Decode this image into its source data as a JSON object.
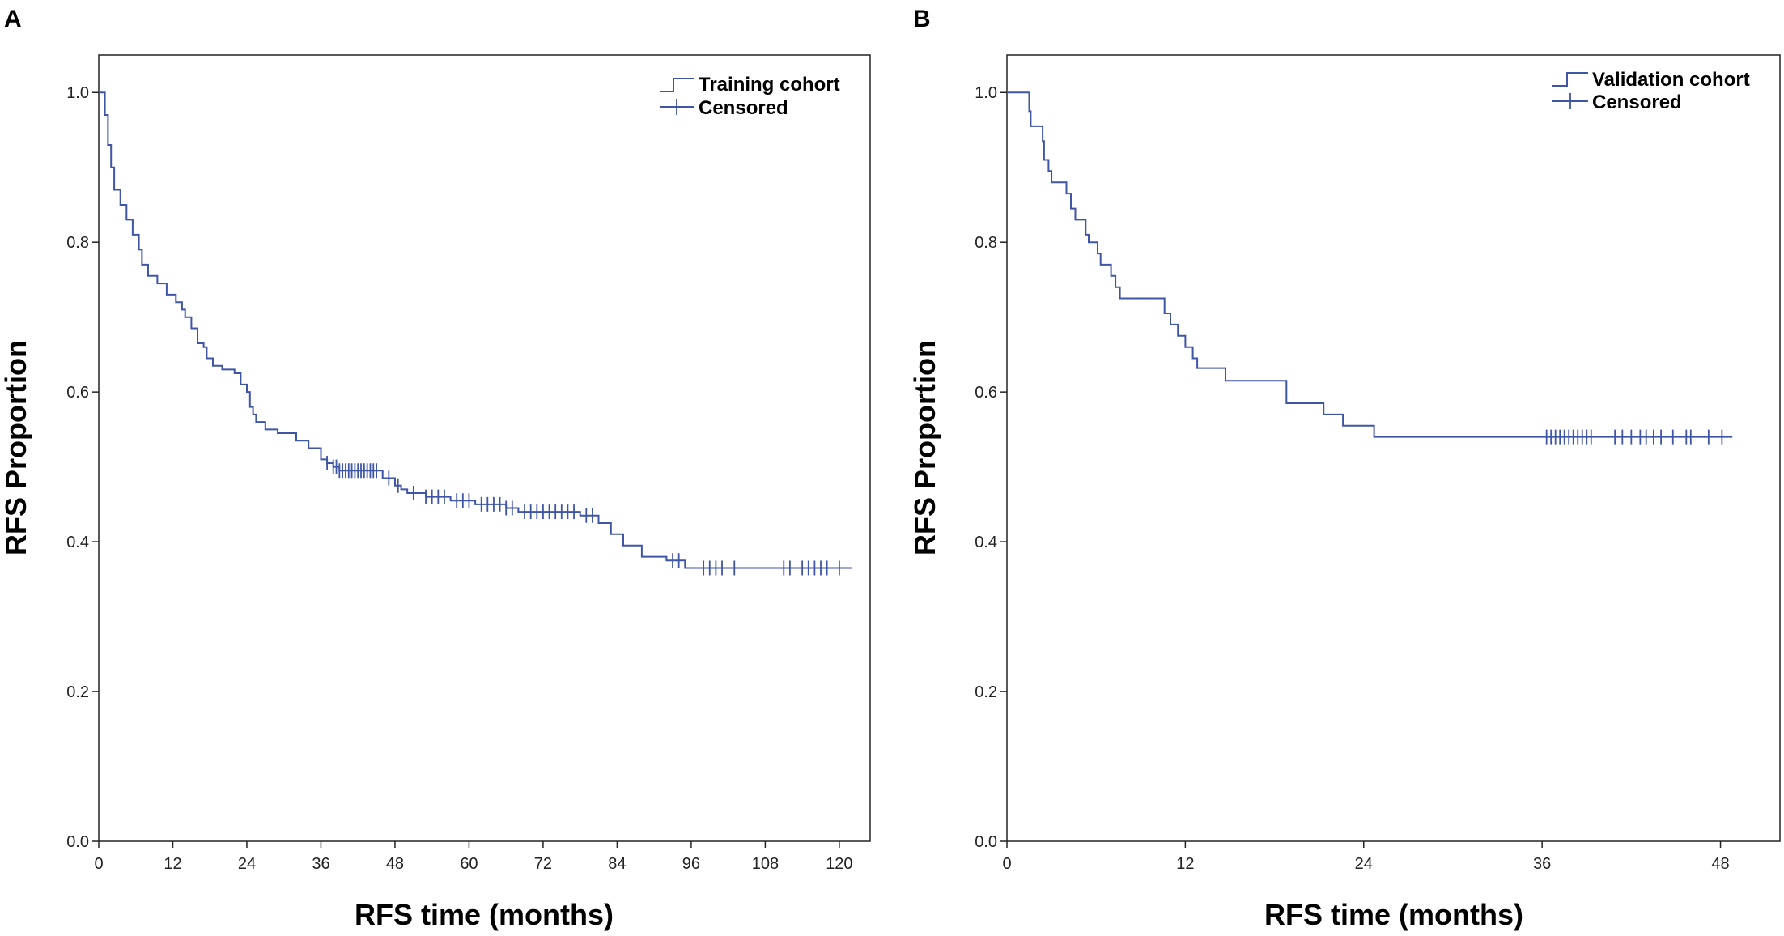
{
  "chart_data": [
    {
      "type": "line",
      "panel": "A",
      "title": "",
      "xlabel": "RFS time (months)",
      "ylabel": "RFS Proportion",
      "xlim": [
        0,
        125
      ],
      "ylim": [
        0,
        1.05
      ],
      "xticks": [
        0,
        12,
        24,
        36,
        48,
        60,
        72,
        84,
        96,
        108,
        120
      ],
      "yticks": [
        0.0,
        0.2,
        0.4,
        0.6,
        0.8,
        1.0
      ],
      "ytick_labels": [
        "0.0",
        "0.2",
        "0.4",
        "0.6",
        "0.8",
        "1.0"
      ],
      "legend": {
        "position": "top-right",
        "entries": [
          "Training cohort",
          "Censored"
        ]
      },
      "grid": false,
      "series": [
        {
          "name": "Training cohort",
          "step": [
            [
              0,
              1.0
            ],
            [
              1,
              0.97
            ],
            [
              1.5,
              0.93
            ],
            [
              2,
              0.9
            ],
            [
              2.5,
              0.87
            ],
            [
              3.5,
              0.85
            ],
            [
              4.5,
              0.83
            ],
            [
              5.5,
              0.81
            ],
            [
              6.5,
              0.79
            ],
            [
              7,
              0.77
            ],
            [
              8,
              0.755
            ],
            [
              9.5,
              0.745
            ],
            [
              11,
              0.73
            ],
            [
              12.5,
              0.72
            ],
            [
              13.5,
              0.71
            ],
            [
              14,
              0.7
            ],
            [
              15,
              0.685
            ],
            [
              16,
              0.665
            ],
            [
              17,
              0.66
            ],
            [
              17.5,
              0.645
            ],
            [
              18.5,
              0.635
            ],
            [
              20,
              0.63
            ],
            [
              22,
              0.625
            ],
            [
              23,
              0.61
            ],
            [
              24,
              0.6
            ],
            [
              24.5,
              0.58
            ],
            [
              25,
              0.57
            ],
            [
              25.5,
              0.56
            ],
            [
              27,
              0.55
            ],
            [
              29,
              0.545
            ],
            [
              32,
              0.535
            ],
            [
              34,
              0.525
            ],
            [
              36,
              0.51
            ],
            [
              37,
              0.505
            ],
            [
              38,
              0.5
            ],
            [
              39,
              0.495
            ],
            [
              46,
              0.485
            ],
            [
              48,
              0.475
            ],
            [
              49,
              0.47
            ],
            [
              50,
              0.465
            ],
            [
              53,
              0.46
            ],
            [
              57,
              0.455
            ],
            [
              61,
              0.45
            ],
            [
              66,
              0.445
            ],
            [
              68,
              0.44
            ],
            [
              78,
              0.435
            ],
            [
              81,
              0.425
            ],
            [
              83,
              0.41
            ],
            [
              85,
              0.395
            ],
            [
              88,
              0.38
            ],
            [
              92,
              0.375
            ],
            [
              95,
              0.365
            ],
            [
              122,
              0.365
            ]
          ],
          "censored": [
            [
              37,
              0.505
            ],
            [
              38,
              0.5
            ],
            [
              38.5,
              0.5
            ],
            [
              39,
              0.495
            ],
            [
              39.5,
              0.495
            ],
            [
              40,
              0.495
            ],
            [
              40.5,
              0.495
            ],
            [
              41,
              0.495
            ],
            [
              41.5,
              0.495
            ],
            [
              42,
              0.495
            ],
            [
              42.5,
              0.495
            ],
            [
              43,
              0.495
            ],
            [
              43.5,
              0.495
            ],
            [
              44,
              0.495
            ],
            [
              44.5,
              0.495
            ],
            [
              45,
              0.495
            ],
            [
              47,
              0.485
            ],
            [
              48.5,
              0.475
            ],
            [
              51,
              0.465
            ],
            [
              53,
              0.46
            ],
            [
              54,
              0.46
            ],
            [
              55,
              0.46
            ],
            [
              56,
              0.46
            ],
            [
              58,
              0.455
            ],
            [
              59,
              0.455
            ],
            [
              60,
              0.455
            ],
            [
              62,
              0.45
            ],
            [
              63,
              0.45
            ],
            [
              64,
              0.45
            ],
            [
              65,
              0.45
            ],
            [
              66,
              0.445
            ],
            [
              67,
              0.445
            ],
            [
              69,
              0.44
            ],
            [
              70,
              0.44
            ],
            [
              71,
              0.44
            ],
            [
              72,
              0.44
            ],
            [
              73,
              0.44
            ],
            [
              74,
              0.44
            ],
            [
              75,
              0.44
            ],
            [
              76,
              0.44
            ],
            [
              77,
              0.44
            ],
            [
              79,
              0.435
            ],
            [
              80,
              0.435
            ],
            [
              93,
              0.375
            ],
            [
              94,
              0.375
            ],
            [
              98,
              0.365
            ],
            [
              99,
              0.365
            ],
            [
              100,
              0.365
            ],
            [
              101,
              0.365
            ],
            [
              103,
              0.365
            ],
            [
              111,
              0.365
            ],
            [
              112,
              0.365
            ],
            [
              114,
              0.365
            ],
            [
              115,
              0.365
            ],
            [
              116,
              0.365
            ],
            [
              117,
              0.365
            ],
            [
              118,
              0.365
            ],
            [
              120,
              0.365
            ]
          ]
        }
      ]
    },
    {
      "type": "line",
      "panel": "B",
      "title": "",
      "xlabel": "RFS time (months)",
      "ylabel": "RFS Proportion",
      "xlim": [
        0,
        52
      ],
      "ylim": [
        0,
        1.05
      ],
      "xticks": [
        0,
        12,
        24,
        36,
        48
      ],
      "yticks": [
        0.0,
        0.2,
        0.4,
        0.6,
        0.8,
        1.0
      ],
      "ytick_labels": [
        "0.0",
        "0.2",
        "0.4",
        "0.6",
        "0.8",
        "1.0"
      ],
      "legend": {
        "position": "top-right",
        "entries": [
          "Validation cohort",
          "Censored"
        ]
      },
      "grid": false,
      "series": [
        {
          "name": "Validation cohort",
          "step": [
            [
              0,
              1.0
            ],
            [
              1.5,
              0.975
            ],
            [
              1.6,
              0.955
            ],
            [
              2.4,
              0.935
            ],
            [
              2.5,
              0.91
            ],
            [
              2.8,
              0.895
            ],
            [
              3,
              0.88
            ],
            [
              4,
              0.865
            ],
            [
              4.3,
              0.845
            ],
            [
              4.6,
              0.83
            ],
            [
              5.3,
              0.81
            ],
            [
              5.5,
              0.8
            ],
            [
              6.1,
              0.785
            ],
            [
              6.3,
              0.77
            ],
            [
              7,
              0.755
            ],
            [
              7.3,
              0.74
            ],
            [
              7.6,
              0.725
            ],
            [
              10.6,
              0.705
            ],
            [
              11,
              0.69
            ],
            [
              11.5,
              0.675
            ],
            [
              12,
              0.66
            ],
            [
              12.5,
              0.645
            ],
            [
              12.8,
              0.632
            ],
            [
              14.7,
              0.615
            ],
            [
              18.8,
              0.585
            ],
            [
              21.3,
              0.57
            ],
            [
              22.6,
              0.555
            ],
            [
              24.7,
              0.54
            ],
            [
              48.8,
              0.54
            ]
          ],
          "censored": [
            [
              36.3,
              0.54
            ],
            [
              36.6,
              0.54
            ],
            [
              36.9,
              0.54
            ],
            [
              37.2,
              0.54
            ],
            [
              37.5,
              0.54
            ],
            [
              37.8,
              0.54
            ],
            [
              38.1,
              0.54
            ],
            [
              38.4,
              0.54
            ],
            [
              38.7,
              0.54
            ],
            [
              39,
              0.54
            ],
            [
              39.3,
              0.54
            ],
            [
              40.9,
              0.54
            ],
            [
              41.4,
              0.54
            ],
            [
              42,
              0.54
            ],
            [
              42.6,
              0.54
            ],
            [
              43,
              0.54
            ],
            [
              43.5,
              0.54
            ],
            [
              44,
              0.54
            ],
            [
              44.8,
              0.54
            ],
            [
              45.7,
              0.54
            ],
            [
              46,
              0.54
            ],
            [
              47.2,
              0.54
            ],
            [
              48.1,
              0.54
            ]
          ]
        }
      ]
    }
  ]
}
